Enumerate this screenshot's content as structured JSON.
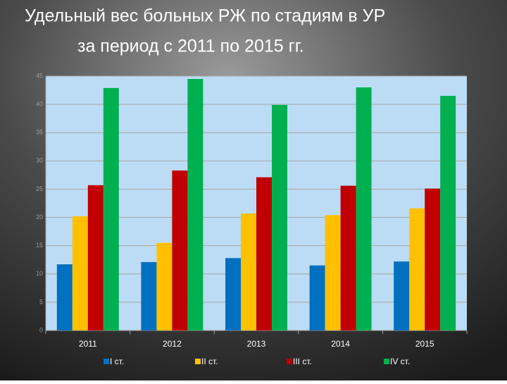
{
  "chart_data": {
    "type": "bar",
    "title": [
      "Удельный вес больных  РЖ по стадиям в УР",
      "за период с 2011 по 2015 гг."
    ],
    "categories": [
      "2011",
      "2012",
      "2013",
      "2014",
      "2015"
    ],
    "series": [
      {
        "name": "I ст.",
        "color": "#0070c0",
        "values": [
          11.7,
          12.1,
          12.8,
          11.5,
          12.2
        ]
      },
      {
        "name": "II ст.",
        "color": "#ffc000",
        "values": [
          20.2,
          15.5,
          20.7,
          20.4,
          21.6
        ]
      },
      {
        "name": "III ст.",
        "color": "#c00000",
        "values": [
          25.7,
          28.3,
          27.1,
          25.6,
          25.1
        ]
      },
      {
        "name": "IV ст.",
        "color": "#00b050",
        "values": [
          42.9,
          44.5,
          39.9,
          43.0,
          41.5
        ]
      }
    ],
    "ylim": [
      0,
      45
    ],
    "yticks": [
      0,
      5,
      10,
      15,
      20,
      25,
      30,
      35,
      40,
      45
    ],
    "grid": true,
    "legend": "bottom"
  }
}
